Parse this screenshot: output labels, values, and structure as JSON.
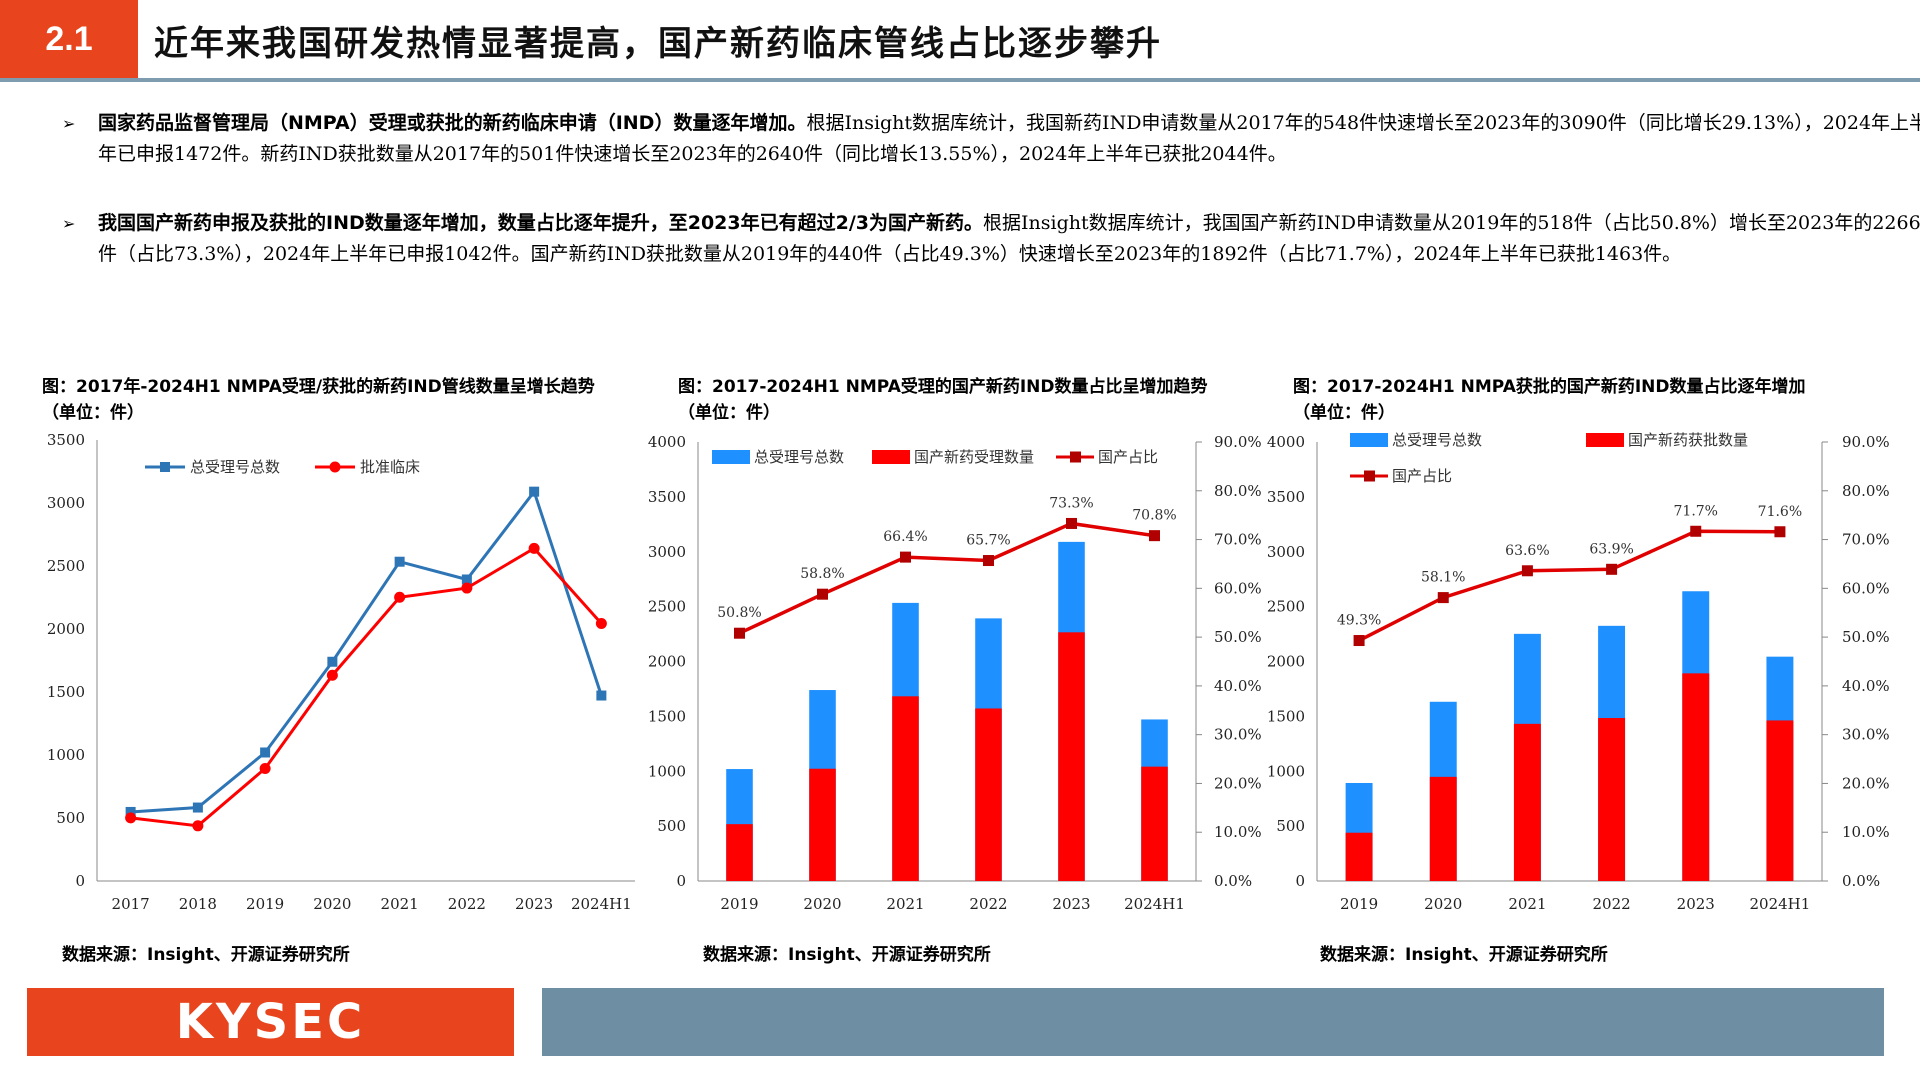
{
  "header": {
    "section_number": "2.1",
    "title": "近年来我国研发热情显著提高，国产新药临床管线占比逐步攀升"
  },
  "bullets": [
    {
      "icon": "arrow-bullet-icon",
      "lead": "国家药品监督管理局（NMPA）受理或获批的新药临床申请（IND）数量逐年增加。",
      "body": "根据Insight数据库统计，我国新药IND申请数量从2017年的548件快速增长至2023年的3090件（同比增长29.13%），2024年上半年已申报1472件。新药IND获批数量从2017年的501件快速增长至2023年的2640件（同比增长13.55%），2024年上半年已获批2044件。"
    },
    {
      "icon": "arrow-bullet-icon",
      "lead": "我国国产新药申报及获批的IND数量逐年增加，数量占比逐年提升，至2023年已有超过2/3为国产新药。",
      "body": "根据Insight数据库统计，我国国产新药IND申请数量从2019年的518件（占比50.8%）增长至2023年的2266件（占比73.3%），2024年上半年已申报1042件。国产新药IND获批数量从2019年的440件（占比49.3%）快速增长至2023年的1892件（占比71.7%），2024年上半年已获批1463件。"
    }
  ],
  "colors": {
    "accent": "#e8451e",
    "header_rule": "#7f9bb0",
    "footer_bar": "#6e8ea3",
    "blue_series": "#2e75b6",
    "blue_bar": "#1e90ff",
    "red_series": "#ff0000",
    "red_line": "#e00000",
    "pct_line": "#e00000"
  },
  "charts": [
    {
      "title_line1": "图：2017年-2024H1 NMPA受理/获批的新药IND管线数量呈增长趋势",
      "title_line2": "（单位：件）",
      "source": "数据来源：Insight、开源证券研究所"
    },
    {
      "title_line1": "图：2017-2024H1 NMPA受理的国产新药IND数量占比呈增加趋势",
      "title_line2": "（单位：件）",
      "source": "数据来源：Insight、开源证券研究所"
    },
    {
      "title_line1": "图：2017-2024H1 NMPA获批的国产新药IND数量占比逐年增加",
      "title_line2": "（单位：件）",
      "source": "数据来源：Insight、开源证券研究所"
    }
  ],
  "chart_data": [
    {
      "type": "line",
      "categories": [
        "2017",
        "2018",
        "2019",
        "2020",
        "2021",
        "2022",
        "2023",
        "2024H1"
      ],
      "series": [
        {
          "name": "总受理号总数",
          "values": [
            548,
            583,
            1020,
            1740,
            2534,
            2393,
            3090,
            1472
          ],
          "color": "#2e75b6",
          "marker": "square"
        },
        {
          "name": "批准临床",
          "values": [
            501,
            438,
            893,
            1633,
            2252,
            2325,
            2640,
            2044
          ],
          "color": "#ff0000",
          "marker": "circle"
        }
      ],
      "ylim": [
        0,
        3500
      ],
      "yticks": [
        0,
        500,
        1000,
        1500,
        2000,
        2500,
        3000,
        3500
      ],
      "legend": "top-left",
      "grid": false
    },
    {
      "type": "bar",
      "categories": [
        "2019",
        "2020",
        "2021",
        "2022",
        "2023",
        "2024H1"
      ],
      "series": [
        {
          "name": "总受理号总数",
          "kind": "bar",
          "values": [
            1020,
            1740,
            2534,
            2393,
            3090,
            1472
          ],
          "color": "#1e90ff"
        },
        {
          "name": "国产新药受理数量",
          "kind": "bar",
          "values": [
            518,
            1023,
            1683,
            1572,
            2266,
            1042
          ],
          "color": "#ff0000"
        },
        {
          "name": "国产占比",
          "kind": "line",
          "axis": "right",
          "values": [
            50.8,
            58.8,
            66.4,
            65.7,
            73.3,
            70.8
          ],
          "labels": [
            "50.8%",
            "58.8%",
            "66.4%",
            "65.7%",
            "73.3%",
            "70.8%"
          ],
          "color": "#e00000"
        }
      ],
      "ylim": [
        0,
        4000
      ],
      "yticks": [
        0,
        500,
        1000,
        1500,
        2000,
        2500,
        3000,
        3500,
        4000
      ],
      "y2lim": [
        0,
        90
      ],
      "y2ticks": [
        "0.0%",
        "10.0%",
        "20.0%",
        "30.0%",
        "40.0%",
        "50.0%",
        "60.0%",
        "70.0%",
        "80.0%",
        "90.0%"
      ],
      "legend": "top",
      "grid": false
    },
    {
      "type": "bar",
      "categories": [
        "2019",
        "2020",
        "2021",
        "2022",
        "2023",
        "2024H1"
      ],
      "series": [
        {
          "name": "总受理号总数",
          "kind": "bar",
          "values": [
            893,
            1633,
            2252,
            2325,
            2640,
            2044
          ],
          "color": "#1e90ff"
        },
        {
          "name": "国产新药获批数量",
          "kind": "bar",
          "values": [
            440,
            949,
            1432,
            1485,
            1892,
            1463
          ],
          "color": "#ff0000"
        },
        {
          "name": "国产占比",
          "kind": "line",
          "axis": "right",
          "values": [
            49.3,
            58.1,
            63.6,
            63.9,
            71.7,
            71.6
          ],
          "labels": [
            "49.3%",
            "58.1%",
            "63.6%",
            "63.9%",
            "71.7%",
            "71.6%"
          ],
          "color": "#e00000"
        }
      ],
      "ylim": [
        0,
        4000
      ],
      "yticks": [
        0,
        500,
        1000,
        1500,
        2000,
        2500,
        3000,
        3500,
        4000
      ],
      "y2lim": [
        0,
        90
      ],
      "y2ticks": [
        "0.0%",
        "10.0%",
        "20.0%",
        "30.0%",
        "40.0%",
        "50.0%",
        "60.0%",
        "70.0%",
        "80.0%",
        "90.0%"
      ],
      "legend": "top-left",
      "grid": false
    }
  ],
  "footer": {
    "logo_text": "KYSEC"
  }
}
